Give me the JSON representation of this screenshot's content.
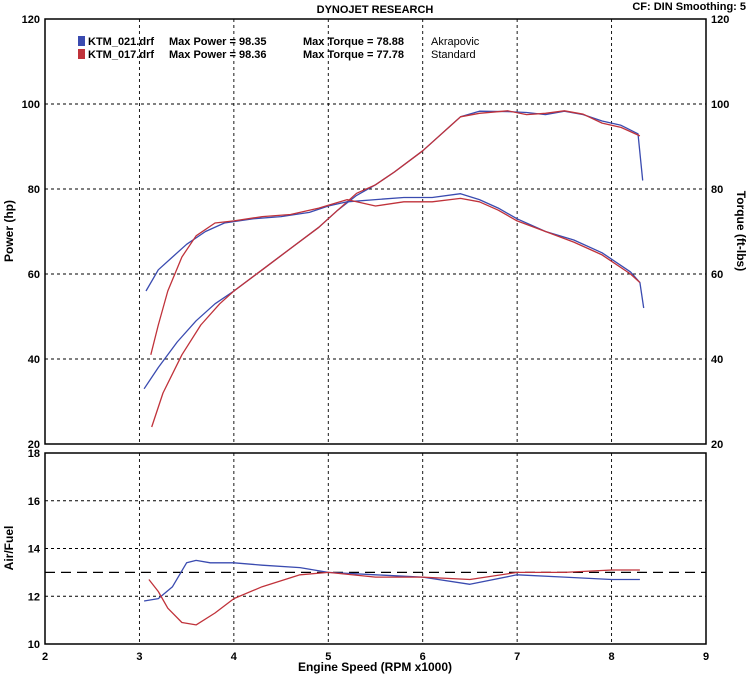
{
  "header": {
    "title": "DYNOJET RESEARCH",
    "settings": "CF: DIN  Smoothing: 5"
  },
  "legend": [
    {
      "file": "KTM_021.drf",
      "max_power": "Max Power = 98.35",
      "max_torque": "Max Torque = 78.88",
      "name": "Akrapovic",
      "color": "#3a4bb0"
    },
    {
      "file": "KTM_017.drf",
      "max_power": "Max Power = 98.36",
      "max_torque": "Max Torque = 77.78",
      "name": "Standard",
      "color": "#c0323a"
    }
  ],
  "chart_data": [
    {
      "type": "line",
      "title": "DYNOJET RESEARCH",
      "xlabel": "",
      "ylabel": "Power (hp)",
      "y2label": "Torque (ft-lbs)",
      "xlim": [
        2,
        9
      ],
      "ylim": [
        20,
        120
      ],
      "y2lim": [
        20,
        120
      ],
      "yticks": [
        "20",
        "40",
        "60",
        "80",
        "100",
        "120"
      ],
      "grid": true,
      "series": [
        {
          "name": "Akrapovic",
          "kind": "power",
          "color": "#3a4bb0",
          "x": [
            3.05,
            3.2,
            3.4,
            3.6,
            3.8,
            4.0,
            4.3,
            4.6,
            4.9,
            5.1,
            5.3,
            5.5,
            5.7,
            6.0,
            6.2,
            6.4,
            6.6,
            6.9,
            7.1,
            7.3,
            7.5,
            7.7,
            7.9,
            8.1,
            8.28,
            8.33
          ],
          "y": [
            33,
            38,
            44,
            49,
            53,
            56,
            61,
            66,
            71,
            75,
            78.5,
            81,
            84,
            89,
            93,
            97,
            98.3,
            98.2,
            98,
            97.5,
            98.3,
            97.5,
            96,
            95,
            93,
            82
          ]
        },
        {
          "name": "Standard",
          "kind": "power",
          "color": "#c0323a",
          "x": [
            3.13,
            3.25,
            3.45,
            3.65,
            3.85,
            4.0,
            4.3,
            4.6,
            4.9,
            5.1,
            5.3,
            5.5,
            5.7,
            6.0,
            6.2,
            6.4,
            6.6,
            6.9,
            7.1,
            7.3,
            7.5,
            7.7,
            7.9,
            8.1,
            8.3
          ],
          "y": [
            24,
            32,
            41,
            48,
            53,
            56,
            61,
            66,
            71,
            75,
            79,
            81,
            84,
            89,
            93,
            97,
            97.8,
            98.4,
            97.5,
            97.8,
            98.4,
            97.6,
            95.5,
            94.5,
            92.5
          ]
        },
        {
          "name": "Akrapovic",
          "kind": "torque",
          "color": "#3a4bb0",
          "x": [
            3.07,
            3.2,
            3.35,
            3.5,
            3.7,
            3.9,
            4.2,
            4.5,
            4.8,
            5.0,
            5.2,
            5.5,
            5.8,
            6.1,
            6.4,
            6.6,
            6.8,
            7.0,
            7.3,
            7.6,
            7.9,
            8.2,
            8.3,
            8.34
          ],
          "y": [
            56,
            61,
            64,
            67,
            70,
            72,
            73,
            73.5,
            74.5,
            76,
            77,
            77.5,
            78,
            78,
            78.9,
            77.5,
            75.5,
            73,
            70,
            68,
            65,
            60.5,
            58,
            52
          ]
        },
        {
          "name": "Standard",
          "kind": "torque",
          "color": "#c0323a",
          "x": [
            3.12,
            3.2,
            3.3,
            3.45,
            3.6,
            3.8,
            4.0,
            4.3,
            4.6,
            4.9,
            5.2,
            5.5,
            5.8,
            6.1,
            6.4,
            6.6,
            6.8,
            7.0,
            7.3,
            7.6,
            7.9,
            8.2,
            8.3
          ],
          "y": [
            41,
            48,
            56,
            64,
            69,
            72,
            72.5,
            73.5,
            74,
            75.5,
            77.5,
            76,
            77,
            77,
            77.8,
            77,
            75,
            72.5,
            70,
            67.5,
            64.5,
            60,
            58
          ]
        }
      ]
    },
    {
      "type": "line",
      "xlabel": "Engine Speed (RPM x1000)",
      "ylabel": "Air/Fuel",
      "xlim": [
        2,
        9
      ],
      "ylim": [
        10,
        18
      ],
      "xticks": [
        "2",
        "3",
        "4",
        "5",
        "6",
        "7",
        "8",
        "9"
      ],
      "yticks": [
        "10",
        "12",
        "14",
        "16",
        "18"
      ],
      "grid": true,
      "reference_line": {
        "y": 13.0,
        "style": "dashed"
      },
      "series": [
        {
          "name": "Akrapovic",
          "color": "#3a4bb0",
          "x": [
            3.05,
            3.2,
            3.35,
            3.5,
            3.6,
            3.75,
            4.0,
            4.3,
            4.7,
            5.0,
            5.5,
            6.0,
            6.5,
            7.0,
            7.5,
            8.0,
            8.3
          ],
          "y": [
            11.8,
            11.9,
            12.4,
            13.4,
            13.5,
            13.4,
            13.4,
            13.3,
            13.2,
            13.0,
            12.9,
            12.8,
            12.5,
            12.9,
            12.8,
            12.7,
            12.7
          ]
        },
        {
          "name": "Standard",
          "color": "#c0323a",
          "x": [
            3.1,
            3.2,
            3.3,
            3.45,
            3.6,
            3.8,
            4.0,
            4.3,
            4.7,
            5.0,
            5.5,
            6.0,
            6.5,
            7.0,
            7.5,
            8.0,
            8.3
          ],
          "y": [
            12.7,
            12.2,
            11.5,
            10.9,
            10.8,
            11.3,
            11.9,
            12.4,
            12.9,
            13.0,
            12.8,
            12.8,
            12.7,
            13.0,
            13.0,
            13.1,
            13.1
          ]
        }
      ]
    }
  ]
}
